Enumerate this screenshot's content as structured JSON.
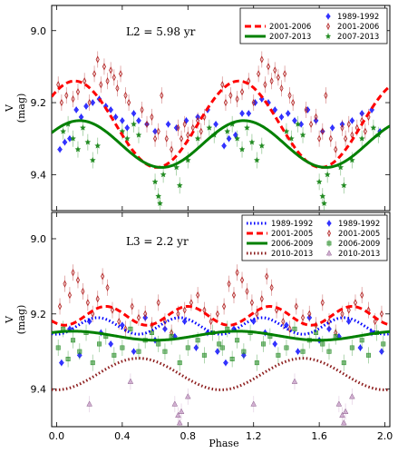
{
  "chart_data": [
    {
      "type": "scatter",
      "panel_label": "L2 = 5.98 yr",
      "ylabel": "V",
      "ylabel_unit": "(mag)",
      "xlim": [
        -0.03,
        2.03
      ],
      "ylim": [
        9.5,
        8.93
      ],
      "y_inverted": true,
      "yticks": [
        9.0,
        9.2,
        9.4
      ],
      "yticklabels": [
        "9.0",
        "9.2",
        "9.4"
      ],
      "legend_position": "top-right",
      "lines": [
        {
          "name": "2001-2006",
          "style": "dashed",
          "color": "#ff0000",
          "period_phase": 1.0,
          "mean": 9.26,
          "amplitude": 0.12,
          "phase_of_minimum_brightness": 0.61
        },
        {
          "name": "2007-2013",
          "style": "solid",
          "color": "#008000",
          "period_phase": 1.0,
          "mean": 9.315,
          "amplitude": 0.065,
          "phase_of_minimum_brightness": 0.64
        }
      ],
      "points": [
        {
          "name": "1989-1992",
          "marker": "diamond",
          "color": "#0000ff",
          "x": [
            0.02,
            0.05,
            0.08,
            0.12,
            0.15,
            0.18,
            0.22,
            0.26,
            0.3,
            0.33,
            0.36,
            0.4,
            0.43,
            0.47,
            0.5,
            0.55,
            0.6,
            0.68,
            0.73,
            0.79,
            0.86,
            0.92,
            0.97,
            1.02,
            1.05,
            1.09,
            1.13,
            1.17,
            1.21,
            1.25,
            1.29,
            1.33,
            1.37,
            1.41,
            1.45,
            1.49,
            1.53,
            1.58,
            1.62,
            1.68,
            1.74,
            1.8,
            1.86,
            1.92,
            1.97
          ],
          "y": [
            9.33,
            9.31,
            9.3,
            9.22,
            9.24,
            9.21,
            9.2,
            9.19,
            9.21,
            9.22,
            9.24,
            9.25,
            9.27,
            9.23,
            9.25,
            9.26,
            9.28,
            9.26,
            9.27,
            9.25,
            9.24,
            9.22,
            9.26,
            9.32,
            9.3,
            9.29,
            9.23,
            9.23,
            9.2,
            9.19,
            9.2,
            9.22,
            9.24,
            9.23,
            9.25,
            9.26,
            9.22,
            9.25,
            9.28,
            9.27,
            9.26,
            9.25,
            9.23,
            9.22,
            9.28
          ]
        },
        {
          "name": "2001-2006",
          "marker": "thin_diamond",
          "color": "#b22222",
          "x": [
            0.01,
            0.03,
            0.06,
            0.1,
            0.13,
            0.17,
            0.2,
            0.23,
            0.25,
            0.27,
            0.29,
            0.31,
            0.33,
            0.35,
            0.37,
            0.39,
            0.42,
            0.44,
            0.52,
            0.55,
            0.58,
            0.6,
            0.62,
            0.64,
            0.67,
            0.7,
            0.74,
            0.76,
            0.78,
            0.8,
            0.83,
            0.86,
            0.88,
            0.9,
            1.01,
            1.03,
            1.06,
            1.1,
            1.13,
            1.17,
            1.2,
            1.23,
            1.25,
            1.27,
            1.29,
            1.31,
            1.33,
            1.35,
            1.37,
            1.39,
            1.42,
            1.44,
            1.52,
            1.55,
            1.58,
            1.6,
            1.62,
            1.64,
            1.67,
            1.7,
            1.74,
            1.76,
            1.78,
            1.8,
            1.83,
            1.86,
            1.88,
            1.9
          ],
          "y": [
            9.15,
            9.2,
            9.18,
            9.19,
            9.17,
            9.14,
            9.2,
            9.12,
            9.08,
            9.15,
            9.1,
            9.14,
            9.11,
            9.13,
            9.16,
            9.12,
            9.18,
            9.2,
            9.22,
            9.26,
            9.24,
            9.3,
            9.28,
            9.18,
            9.3,
            9.33,
            9.27,
            9.3,
            9.26,
            9.29,
            9.27,
            9.25,
            9.28,
            9.24,
            9.15,
            9.2,
            9.18,
            9.19,
            9.17,
            9.14,
            9.2,
            9.12,
            9.08,
            9.15,
            9.1,
            9.14,
            9.11,
            9.13,
            9.16,
            9.12,
            9.18,
            9.2,
            9.22,
            9.26,
            9.24,
            9.3,
            9.28,
            9.18,
            9.3,
            9.33,
            9.27,
            9.3,
            9.26,
            9.29,
            9.27,
            9.25,
            9.28,
            9.24
          ]
        },
        {
          "name": "2007-2013",
          "marker": "star",
          "color": "#228b22",
          "x": [
            0.04,
            0.07,
            0.1,
            0.13,
            0.16,
            0.19,
            0.22,
            0.25,
            0.4,
            0.43,
            0.47,
            0.5,
            0.6,
            0.62,
            0.63,
            0.65,
            0.73,
            0.75,
            0.8,
            0.86,
            0.93,
            0.96,
            1.04,
            1.07,
            1.1,
            1.13,
            1.16,
            1.19,
            1.22,
            1.25,
            1.4,
            1.43,
            1.47,
            1.5,
            1.6,
            1.62,
            1.63,
            1.65,
            1.73,
            1.75,
            1.8,
            1.86,
            1.93,
            1.96
          ],
          "y": [
            9.28,
            9.26,
            9.3,
            9.33,
            9.27,
            9.31,
            9.36,
            9.32,
            9.28,
            9.3,
            9.26,
            9.29,
            9.42,
            9.46,
            9.48,
            9.4,
            9.38,
            9.43,
            9.36,
            9.3,
            9.27,
            9.29,
            9.28,
            9.26,
            9.3,
            9.33,
            9.27,
            9.31,
            9.36,
            9.32,
            9.28,
            9.3,
            9.26,
            9.29,
            9.42,
            9.46,
            9.48,
            9.4,
            9.38,
            9.43,
            9.36,
            9.3,
            9.27,
            9.29
          ]
        }
      ]
    },
    {
      "type": "scatter",
      "panel_label": "L3 = 2.2 yr",
      "xlabel": "Phase",
      "ylabel": "V",
      "ylabel_unit": "(mag)",
      "xlim": [
        -0.03,
        2.03
      ],
      "ylim": [
        9.5,
        8.93
      ],
      "y_inverted": true,
      "xticks": [
        0.0,
        0.4,
        0.8,
        1.2,
        1.6,
        2.0
      ],
      "xticklabels": [
        "0.0",
        "0.4",
        "0.8",
        "1.2",
        "1.6",
        "2.0"
      ],
      "yticks": [
        9.0,
        9.2,
        9.4
      ],
      "yticklabels": [
        "9.0",
        "9.2",
        "9.4"
      ],
      "legend_position": "top-right",
      "lines": [
        {
          "name": "1989-1992",
          "style": "dotted",
          "color": "#0000ff",
          "period_phase": 0.5,
          "mean": 9.232,
          "amplitude": 0.022,
          "phase_of_minimum_brightness": 0.0
        },
        {
          "name": "2001-2005",
          "style": "dashed",
          "color": "#ff0000",
          "period_phase": 0.5,
          "mean": 9.205,
          "amplitude": 0.025,
          "phase_of_minimum_brightness": 0.05
        },
        {
          "name": "2006-2009",
          "style": "solid",
          "color": "#008000",
          "period_phase": 1.0,
          "mean": 9.258,
          "amplitude": 0.012,
          "phase_of_minimum_brightness": 0.6
        },
        {
          "name": "2010-2013",
          "style": "dotted",
          "color": "#8b1a1a",
          "period_phase": 1.0,
          "mean": 9.36,
          "amplitude": 0.042,
          "phase_of_minimum_brightness": 0.0
        }
      ],
      "points": [
        {
          "name": "1989-1992",
          "marker": "diamond",
          "color": "#0000ff",
          "x": [
            0.03,
            0.08,
            0.14,
            0.2,
            0.27,
            0.33,
            0.4,
            0.47,
            0.54,
            0.6,
            0.66,
            0.72,
            0.78,
            0.85,
            0.92,
            0.98,
            1.03,
            1.08,
            1.14,
            1.2,
            1.27,
            1.33,
            1.4,
            1.47,
            1.54,
            1.6,
            1.66,
            1.72,
            1.78,
            1.85,
            1.92,
            1.98
          ],
          "y": [
            9.33,
            9.24,
            9.31,
            9.22,
            9.25,
            9.28,
            9.23,
            9.3,
            9.21,
            9.27,
            9.24,
            9.26,
            9.22,
            9.29,
            9.25,
            9.3,
            9.33,
            9.24,
            9.31,
            9.22,
            9.25,
            9.28,
            9.23,
            9.3,
            9.21,
            9.27,
            9.24,
            9.26,
            9.22,
            9.29,
            9.25,
            9.3
          ]
        },
        {
          "name": "2001-2005",
          "marker": "thin_diamond",
          "color": "#b22222",
          "x": [
            0.02,
            0.05,
            0.08,
            0.1,
            0.13,
            0.16,
            0.19,
            0.22,
            0.25,
            0.28,
            0.31,
            0.34,
            0.38,
            0.42,
            0.46,
            0.5,
            0.54,
            0.58,
            0.62,
            0.66,
            0.7,
            0.74,
            0.78,
            0.82,
            0.86,
            0.9,
            0.94,
            0.98,
            1.02,
            1.05,
            1.08,
            1.1,
            1.13,
            1.16,
            1.19,
            1.22,
            1.25,
            1.28,
            1.31,
            1.34,
            1.38,
            1.42,
            1.46,
            1.5,
            1.54,
            1.58,
            1.62,
            1.66,
            1.7,
            1.74,
            1.78,
            1.82,
            1.86,
            1.9,
            1.94,
            1.98
          ],
          "y": [
            9.18,
            9.12,
            9.15,
            9.09,
            9.11,
            9.14,
            9.17,
            9.2,
            9.16,
            9.1,
            9.13,
            9.19,
            9.22,
            9.24,
            9.18,
            9.21,
            9.2,
            9.23,
            9.17,
            9.22,
            9.25,
            9.2,
            9.19,
            9.17,
            9.15,
            9.19,
            9.22,
            9.2,
            9.18,
            9.12,
            9.15,
            9.09,
            9.11,
            9.14,
            9.17,
            9.2,
            9.16,
            9.1,
            9.13,
            9.19,
            9.22,
            9.24,
            9.18,
            9.21,
            9.2,
            9.23,
            9.17,
            9.22,
            9.25,
            9.2,
            9.19,
            9.17,
            9.15,
            9.19,
            9.22,
            9.2
          ]
        },
        {
          "name": "2006-2009",
          "marker": "square",
          "color": "#228b22",
          "x": [
            0.01,
            0.04,
            0.07,
            0.1,
            0.14,
            0.18,
            0.22,
            0.26,
            0.3,
            0.35,
            0.4,
            0.45,
            0.5,
            0.54,
            0.58,
            0.62,
            0.66,
            0.7,
            0.75,
            0.8,
            0.86,
            0.9,
            0.95,
            0.99,
            1.01,
            1.04,
            1.07,
            1.1,
            1.14,
            1.18,
            1.22,
            1.26,
            1.3,
            1.35,
            1.4,
            1.45,
            1.5,
            1.54,
            1.58,
            1.62,
            1.66,
            1.7,
            1.75,
            1.8,
            1.86,
            1.9,
            1.95,
            1.99
          ],
          "y": [
            9.29,
            9.24,
            9.32,
            9.27,
            9.3,
            9.25,
            9.33,
            9.28,
            9.26,
            9.31,
            9.29,
            9.24,
            9.3,
            9.27,
            9.25,
            9.28,
            9.3,
            9.26,
            9.33,
            9.29,
            9.27,
            9.31,
            9.25,
            9.28,
            9.29,
            9.24,
            9.32,
            9.27,
            9.3,
            9.25,
            9.33,
            9.28,
            9.26,
            9.31,
            9.29,
            9.24,
            9.3,
            9.27,
            9.25,
            9.28,
            9.3,
            9.26,
            9.33,
            9.29,
            9.27,
            9.31,
            9.25,
            9.28
          ]
        },
        {
          "name": "2010-2013",
          "marker": "triangle",
          "color": "#c8a0c8",
          "x": [
            0.2,
            0.45,
            0.72,
            0.74,
            0.75,
            0.76,
            0.8,
            1.2,
            1.45,
            1.72,
            1.74,
            1.75,
            1.76,
            1.8
          ],
          "y": [
            9.44,
            9.38,
            9.44,
            9.47,
            9.49,
            9.46,
            9.42,
            9.44,
            9.38,
            9.44,
            9.47,
            9.49,
            9.46,
            9.42
          ]
        }
      ]
    }
  ]
}
